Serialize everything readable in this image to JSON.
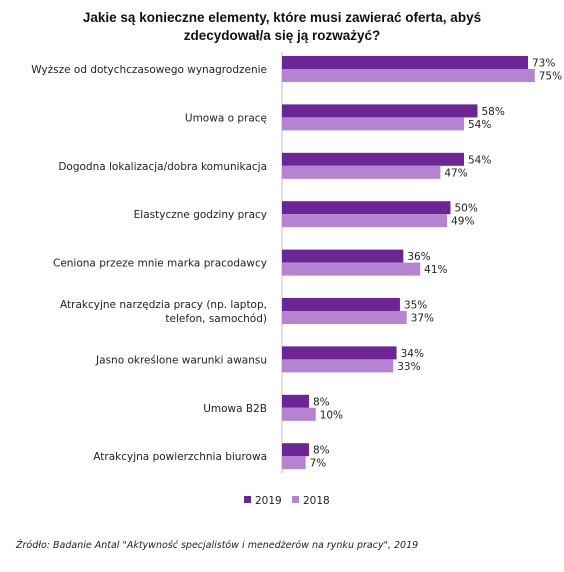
{
  "chart_data": {
    "type": "bar",
    "orientation": "horizontal",
    "title_lines": [
      "Jakie są konieczne elementy, które musi zawierać oferta, abyś",
      "zdecydował/a  się ją rozważyć?"
    ],
    "categories": [
      [
        "Wyższe od dotychczasowego wynagrodzenie"
      ],
      [
        "Umowa o pracę"
      ],
      [
        "Dogodna lokalizacja/dobra komunikacja"
      ],
      [
        "Elastyczne godziny pracy"
      ],
      [
        "Ceniona przeze mnie marka pracodawcy"
      ],
      [
        "Atrakcyjne narzędzia pracy  (np. laptop,",
        "telefon, samochód)"
      ],
      [
        "Jasno określone warunki awansu"
      ],
      [
        "Umowa B2B"
      ],
      [
        "Atrakcyjna powierzchnia biurowa"
      ]
    ],
    "series": [
      {
        "name": "2019",
        "color": "#6b2595",
        "values": [
          73,
          58,
          54,
          50,
          36,
          35,
          34,
          8,
          8
        ]
      },
      {
        "name": "2018",
        "color": "#b484d2",
        "values": [
          75,
          54,
          47,
          49,
          41,
          37,
          33,
          10,
          7
        ]
      }
    ],
    "value_suffix": "%",
    "xlim": [
      0,
      100
    ],
    "grid": false,
    "legend_position": "bottom-left",
    "source": "Źródło: Badanie Antal \"Aktywność specjalistów i menedżerów na rynku pracy\", 2019"
  }
}
